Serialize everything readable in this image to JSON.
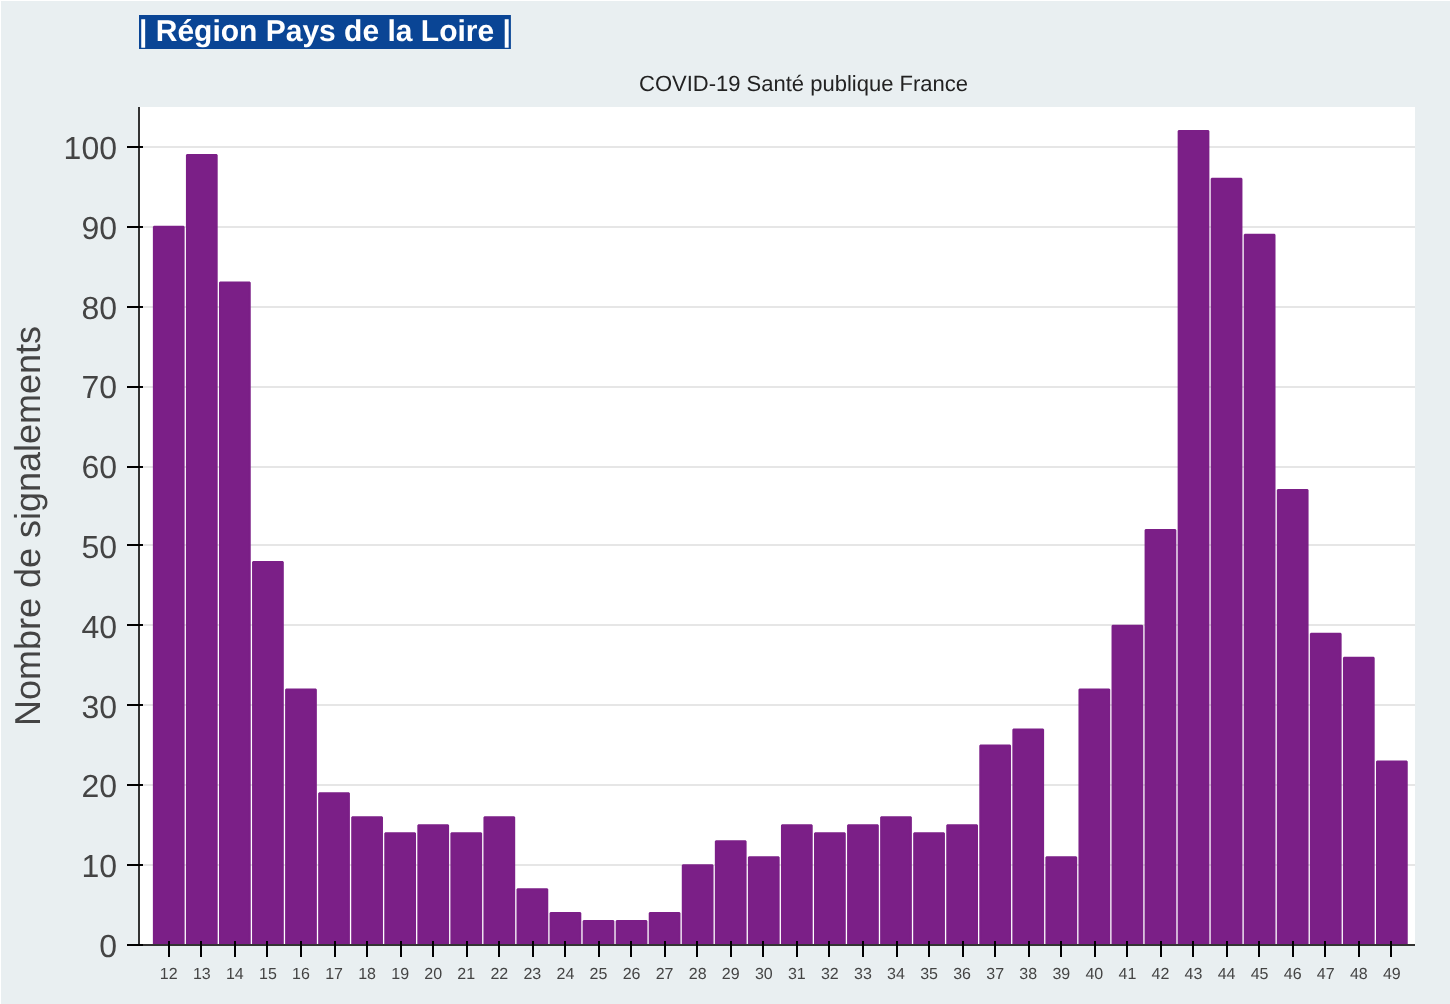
{
  "chart_data": {
    "type": "bar",
    "title": "| Région Pays de la Loire |",
    "subtitle": "COVID-19 Santé publique France",
    "ylabel": "Nombre de signalements",
    "categories": [
      "12",
      "13",
      "14",
      "15",
      "16",
      "17",
      "18",
      "19",
      "20",
      "21",
      "22",
      "23",
      "24",
      "25",
      "26",
      "27",
      "28",
      "29",
      "30",
      "31",
      "32",
      "33",
      "34",
      "35",
      "36",
      "37",
      "38",
      "39",
      "40",
      "41",
      "42",
      "43",
      "44",
      "45",
      "46",
      "47",
      "48",
      "49"
    ],
    "values": [
      90,
      99,
      83,
      48,
      32,
      19,
      16,
      14,
      15,
      14,
      16,
      7,
      4,
      3,
      3,
      4,
      10,
      13,
      11,
      15,
      14,
      15,
      16,
      14,
      15,
      25,
      27,
      11,
      32,
      40,
      52,
      102,
      96,
      89,
      57,
      39,
      36,
      23
    ],
    "color": "#7b1f87",
    "ylim": [
      0,
      105
    ],
    "yticks": [
      0,
      10,
      20,
      30,
      40,
      50,
      60,
      70,
      80,
      90,
      100
    ],
    "grid": "y"
  }
}
